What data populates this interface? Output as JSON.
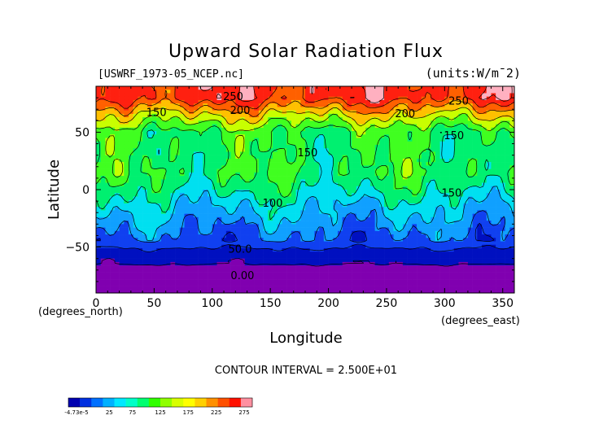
{
  "chart_data": {
    "type": "heatmap",
    "title": "Upward Solar Radiation Flux",
    "file_label": "[USWRF_1973-05_NCEP.nc]",
    "units_label": "(units:W/m¯2)",
    "xlabel": "Longitude",
    "ylabel": "Latitude",
    "x_unit_label": "(degrees_east)",
    "y_unit_label": "(degrees_north)",
    "xlim": [
      0,
      360
    ],
    "ylim": [
      -90,
      90
    ],
    "x_ticks": [
      "0",
      "50",
      "100",
      "150",
      "200",
      "250",
      "300",
      "350"
    ],
    "y_ticks": [
      "50",
      "0",
      "-50"
    ],
    "contour_interval_text": "CONTOUR INTERVAL = 2.500E+01",
    "contour_labels": [
      {
        "text": "250",
        "lon": 118,
        "lat": 78
      },
      {
        "text": "200",
        "lon": 124,
        "lat": 66
      },
      {
        "text": "150",
        "lon": 52,
        "lat": 64
      },
      {
        "text": "150",
        "lon": 182,
        "lat": 29
      },
      {
        "text": "100",
        "lon": 152,
        "lat": -15
      },
      {
        "text": "150",
        "lon": 308,
        "lat": 44
      },
      {
        "text": "150",
        "lon": 306,
        "lat": -6
      },
      {
        "text": "200",
        "lon": 266,
        "lat": 63
      },
      {
        "text": "250",
        "lon": 312,
        "lat": 74
      },
      {
        "text": "50.0",
        "lon": 124,
        "lat": -55
      },
      {
        "text": "0.00",
        "lon": 126,
        "lat": -78
      }
    ],
    "zonal_profile": [
      {
        "lat": 80,
        "value": 262
      },
      {
        "lat": 65,
        "value": 200
      },
      {
        "lat": 50,
        "value": 150
      },
      {
        "lat": 30,
        "value": 145
      },
      {
        "lat": 15,
        "value": 150
      },
      {
        "lat": 0,
        "value": 130
      },
      {
        "lat": -15,
        "value": 105
      },
      {
        "lat": -30,
        "value": 85
      },
      {
        "lat": -45,
        "value": 65
      },
      {
        "lat": -55,
        "value": 40
      },
      {
        "lat": -65,
        "value": 25
      },
      {
        "lat": -80,
        "value": 0
      }
    ],
    "colorbar": {
      "labels": [
        "-4.73e-5",
        "25",
        "75",
        "125",
        "175",
        "225",
        "275"
      ],
      "colors": [
        "#0000b0",
        "#0030e0",
        "#0070ff",
        "#00b0ff",
        "#00e8ff",
        "#00ffc8",
        "#00ff70",
        "#30ff00",
        "#90ff00",
        "#d8ff00",
        "#ffff00",
        "#ffd000",
        "#ff9000",
        "#ff5000",
        "#ff1000",
        "#ff90a0"
      ]
    },
    "colors": {
      "band_0_25": "#8000b0",
      "band_25_50": "#0010c0",
      "band_50_75": "#1040f0",
      "band_75_100": "#10a0ff",
      "band_100_125": "#00e0f0",
      "band_125_150": "#00f070",
      "band_150_175": "#40ff20",
      "band_175_200": "#c8ff00",
      "band_200_225": "#ffc000",
      "band_225_250": "#ff6000",
      "band_250_275": "#ff2010",
      "band_275_plus": "#ffb0c0"
    }
  }
}
